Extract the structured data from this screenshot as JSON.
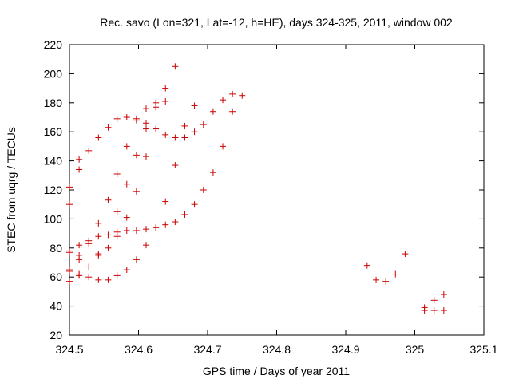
{
  "chart_data": {
    "type": "scatter",
    "title": "Rec. savo (Lon=321, Lat=-12, h=HE), days 324-325, 2011, window 002",
    "xlabel": "GPS time / Days of year 2011",
    "ylabel": "STEC from uqrg / TECUs",
    "xlim": [
      324.5,
      325.1
    ],
    "ylim": [
      20,
      220
    ],
    "xticks": [
      324.5,
      324.6,
      324.7,
      324.8,
      324.9,
      325.0,
      325.1
    ],
    "xtick_labels": [
      "324.5",
      "324.6",
      "324.7",
      "324.8",
      "324.9",
      "325",
      "325.1"
    ],
    "yticks": [
      20,
      40,
      60,
      80,
      100,
      120,
      140,
      160,
      180,
      200,
      220
    ],
    "ytick_labels": [
      "20",
      "40",
      "60",
      "80",
      "100",
      "120",
      "140",
      "160",
      "180",
      "200",
      "220"
    ],
    "grid": false,
    "legend": "none",
    "point_color": "#cc0000",
    "marker": "plus",
    "series": [
      {
        "x": [
          324.5,
          324.5,
          324.5,
          324.5,
          324.5,
          324.5,
          324.5,
          324.514,
          324.514,
          324.514,
          324.514,
          324.514,
          324.514,
          324.514,
          324.528,
          324.528,
          324.528,
          324.528,
          324.528,
          324.542,
          324.542,
          324.542,
          324.542,
          324.542,
          324.542,
          324.556,
          324.556,
          324.556,
          324.556,
          324.556,
          324.569,
          324.569,
          324.569,
          324.569,
          324.569,
          324.569,
          324.583,
          324.583,
          324.583,
          324.583,
          324.583,
          324.583,
          324.597,
          324.597,
          324.597,
          324.597,
          324.597,
          324.597,
          324.611,
          324.611,
          324.611,
          324.611,
          324.611,
          324.611,
          324.625,
          324.625,
          324.625,
          324.625,
          324.639,
          324.639,
          324.639,
          324.639,
          324.639,
          324.653,
          324.653,
          324.653,
          324.653,
          324.667,
          324.667,
          324.667,
          324.681,
          324.681,
          324.681,
          324.694,
          324.694,
          324.708,
          324.708,
          324.722,
          324.722,
          324.736,
          324.736,
          324.75,
          324.931,
          324.944,
          324.958,
          324.972,
          324.986,
          325.014,
          325.014,
          325.028,
          325.028,
          325.042,
          325.042
        ],
        "y": [
          122,
          110,
          78,
          77,
          65,
          64,
          57,
          141,
          134,
          82,
          75,
          72,
          62,
          61,
          147,
          85,
          83,
          67,
          60,
          156,
          97,
          88,
          76,
          75,
          58,
          163,
          113,
          89,
          80,
          58,
          169,
          131,
          105,
          91,
          88,
          61,
          170,
          150,
          124,
          101,
          92,
          65,
          169,
          168,
          144,
          119,
          92,
          72,
          176,
          166,
          162,
          143,
          93,
          82,
          180,
          177,
          162,
          94,
          190,
          181,
          158,
          112,
          96,
          205,
          156,
          137,
          98,
          164,
          156,
          103,
          178,
          160,
          110,
          165,
          120,
          174,
          132,
          182,
          150,
          186,
          174,
          185,
          68,
          58,
          57,
          62,
          76,
          39,
          37,
          44,
          37,
          48,
          37
        ]
      }
    ]
  }
}
